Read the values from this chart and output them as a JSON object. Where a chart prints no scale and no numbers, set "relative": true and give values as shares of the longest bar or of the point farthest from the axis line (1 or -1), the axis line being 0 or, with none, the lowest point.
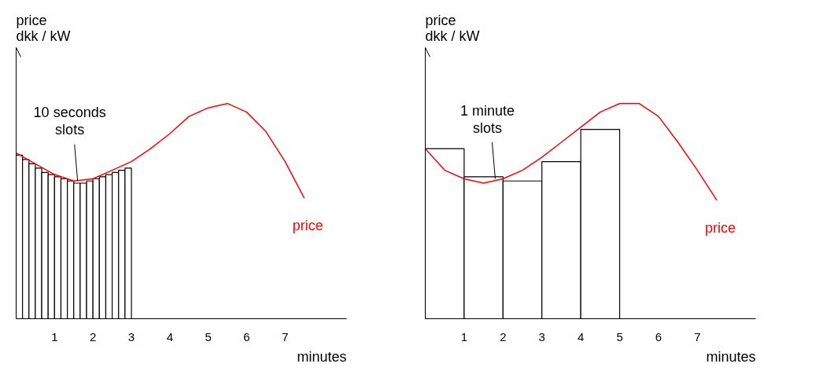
{
  "chart_data": [
    {
      "type": "bar",
      "relative": true,
      "ylabel": "price\ndkk / kW",
      "xlabel": "minutes",
      "xlim": [
        0,
        8.6
      ],
      "xticks": [
        1,
        2,
        3,
        4,
        5,
        6,
        7
      ],
      "grid": false,
      "annotations": [
        {
          "text": "10 seconds\nslots",
          "x": 1.6,
          "y": 0.64
        }
      ],
      "series": [
        {
          "color": "#ffffff",
          "x": [
            0.083,
            0.25,
            0.417,
            0.583,
            0.75,
            0.917,
            1.083,
            1.25,
            1.417,
            1.583,
            1.75,
            1.917,
            2.083,
            2.25,
            2.417,
            2.583,
            2.75,
            2.917
          ],
          "values": [
            0.76,
            0.74,
            0.72,
            0.7,
            0.68,
            0.67,
            0.66,
            0.65,
            0.64,
            0.63,
            0.63,
            0.64,
            0.65,
            0.66,
            0.67,
            0.68,
            0.69,
            0.7
          ]
        },
        {
          "type": "line",
          "name": "price",
          "color": "#ff0000",
          "x": [
            0,
            0.5,
            1,
            1.5,
            2,
            2.5,
            3,
            3.5,
            4,
            4.5,
            5,
            5.5,
            6,
            6.5,
            7,
            7.5
          ],
          "values": [
            0.77,
            0.72,
            0.67,
            0.64,
            0.65,
            0.69,
            0.73,
            0.79,
            0.86,
            0.94,
            0.98,
            1.0,
            0.96,
            0.87,
            0.73,
            0.56
          ]
        }
      ]
    },
    {
      "type": "bar",
      "relative": true,
      "ylabel": "price\ndkk / kW",
      "xlabel": "minutes",
      "xlim": [
        0,
        8.5
      ],
      "xticks": [
        1,
        2,
        3,
        4,
        5,
        6,
        7
      ],
      "grid": false,
      "annotations": [
        {
          "text": "1 minute\nslots",
          "x": 1.8,
          "y": 0.65
        }
      ],
      "series": [
        {
          "color": "#ffffff",
          "x": [
            0.5,
            1.5,
            2.5,
            3.5,
            4.5
          ],
          "values": [
            0.79,
            0.66,
            0.64,
            0.73,
            0.88
          ]
        },
        {
          "type": "line",
          "name": "price",
          "color": "#ff0000",
          "x": [
            0,
            0.5,
            1,
            1.5,
            2,
            2.5,
            3,
            3.5,
            4,
            4.5,
            5,
            5.5,
            6,
            6.5,
            7,
            7.5
          ],
          "values": [
            0.79,
            0.69,
            0.65,
            0.63,
            0.65,
            0.69,
            0.75,
            0.82,
            0.89,
            0.96,
            1.0,
            1.0,
            0.94,
            0.82,
            0.69,
            0.55
          ]
        }
      ]
    }
  ]
}
